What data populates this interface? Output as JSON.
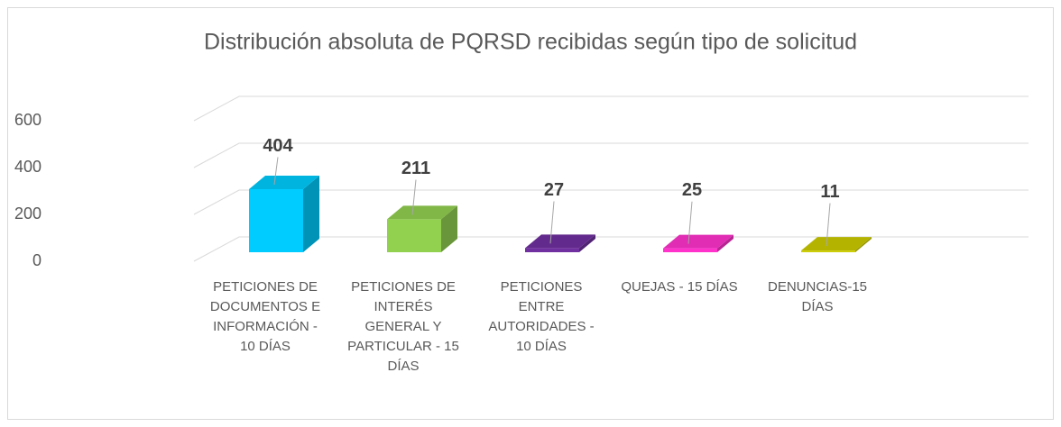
{
  "chart_data": {
    "type": "bar3d",
    "title": "Distribución absoluta de PQRSD recibidas según tipo de solicitud",
    "categories": [
      "PETICIONES DE DOCUMENTOS E INFORMACIÓN - 10 DÍAS",
      "PETICIONES DE INTERÉS GENERAL Y PARTICULAR - 15 DÍAS",
      "PETICIONES ENTRE AUTORIDADES - 10 DÍAS",
      "QUEJAS - 15 DÍAS",
      "DENUNCIAS-15 DÍAS"
    ],
    "values": [
      404,
      211,
      27,
      25,
      11
    ],
    "colors": [
      "#00ccff",
      "#92d050",
      "#7030a0",
      "#ff33cc",
      "#cccc00"
    ],
    "ylim": [
      0,
      600
    ],
    "yticks": [
      0,
      200,
      400,
      600
    ],
    "grid": true
  }
}
